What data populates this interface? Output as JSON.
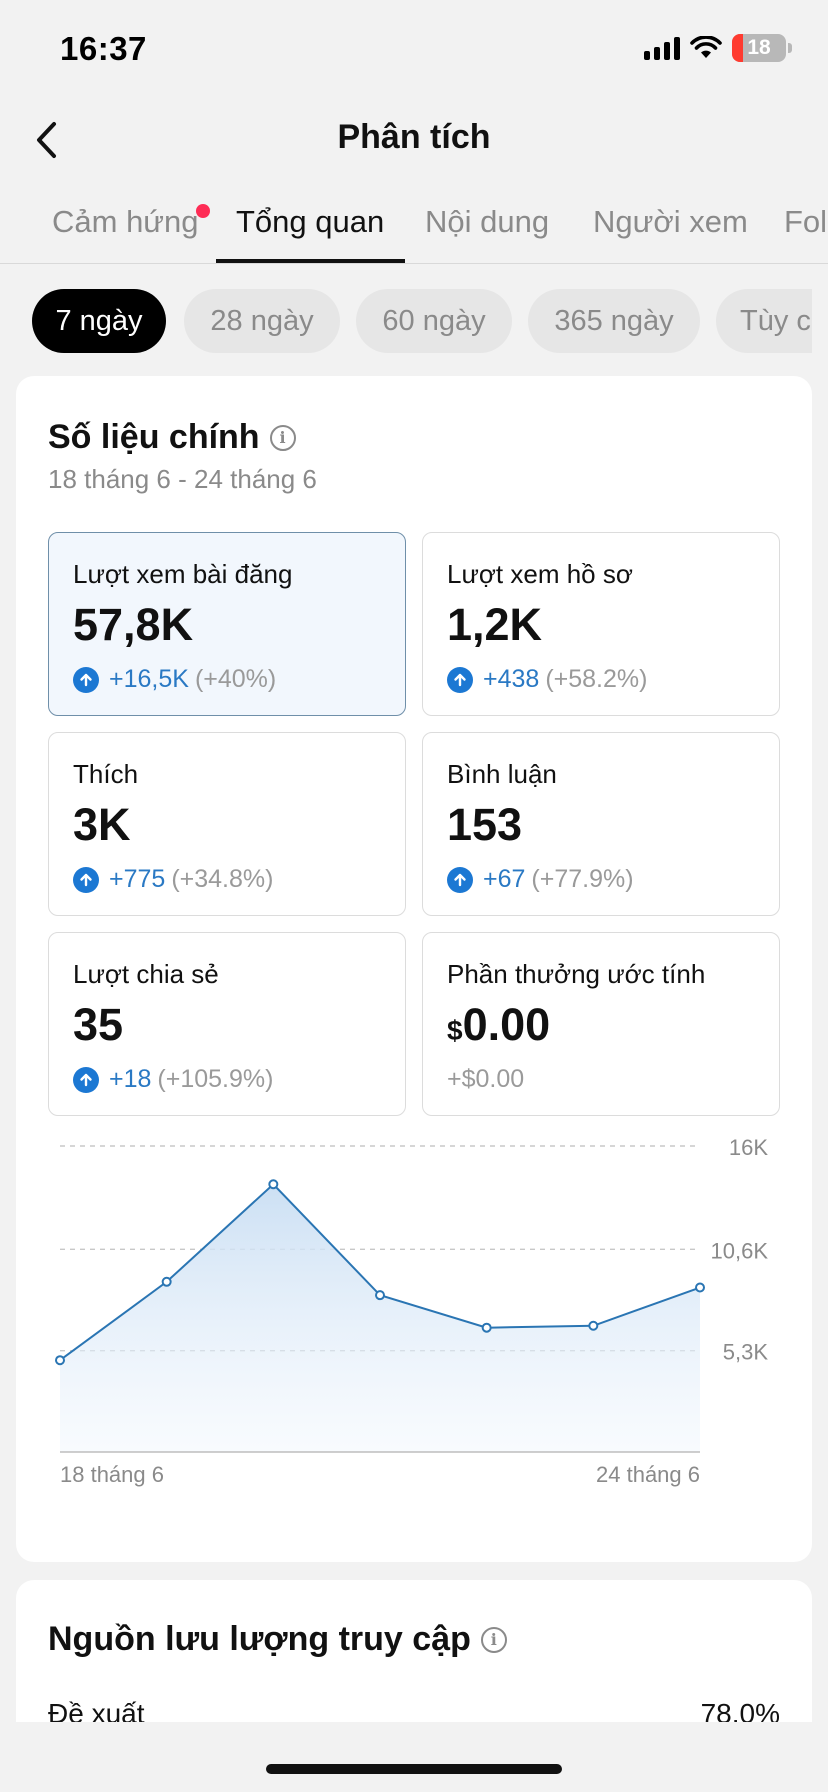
{
  "status_bar": {
    "time": "16:37",
    "battery": "18"
  },
  "header": {
    "title": "Phân tích"
  },
  "tabs": [
    {
      "label": "Cảm hứng",
      "has_dot": true
    },
    {
      "label": "Tổng quan",
      "active": true
    },
    {
      "label": "Nội dung"
    },
    {
      "label": "Người xem"
    },
    {
      "label": "Fol"
    }
  ],
  "date_ranges": [
    {
      "label": "7 ngày",
      "active": true
    },
    {
      "label": "28 ngày"
    },
    {
      "label": "60 ngày"
    },
    {
      "label": "365 ngày"
    },
    {
      "label": "Tùy ch"
    }
  ],
  "key_metrics": {
    "title": "Số liệu chính",
    "date_range": "18 tháng 6 - 24 tháng 6",
    "cards": [
      {
        "label": "Lượt xem bài đăng",
        "value": "57,8K",
        "delta": "+16,5K",
        "pct": "(+40%)",
        "selected": true
      },
      {
        "label": "Lượt xem hồ sơ",
        "value": "1,2K",
        "delta": "+438",
        "pct": "(+58.2%)"
      },
      {
        "label": "Thích",
        "value": "3K",
        "delta": "+775",
        "pct": "(+34.8%)"
      },
      {
        "label": "Bình luận",
        "value": "153",
        "delta": "+67",
        "pct": "(+77.9%)"
      },
      {
        "label": "Lượt chia sẻ",
        "value": "35",
        "delta": "+18",
        "pct": "(+105.9%)"
      },
      {
        "label": "Phần thưởng ước tính",
        "currency": "$",
        "value": "0.00",
        "change": "+$0.00"
      }
    ]
  },
  "chart_data": {
    "type": "area",
    "x": [
      "18 tháng 6",
      "19 tháng 6",
      "20 tháng 6",
      "21 tháng 6",
      "22 tháng 6",
      "23 tháng 6",
      "24 tháng 6"
    ],
    "values": [
      4800,
      8900,
      14000,
      8200,
      6500,
      6600,
      8600
    ],
    "y_ticks": [
      "16K",
      "10,6K",
      "5,3K"
    ],
    "ylim": [
      0,
      16000
    ],
    "x_tick_labels": [
      "18 tháng 6",
      "24 tháng 6"
    ],
    "line_color": "#2a75b3",
    "fill_color": "#cfe2f5",
    "grid": true
  },
  "traffic": {
    "title": "Nguồn lưu lượng truy cập",
    "rows": [
      {
        "label": "Đề xuất",
        "value": "78.0%"
      }
    ]
  }
}
